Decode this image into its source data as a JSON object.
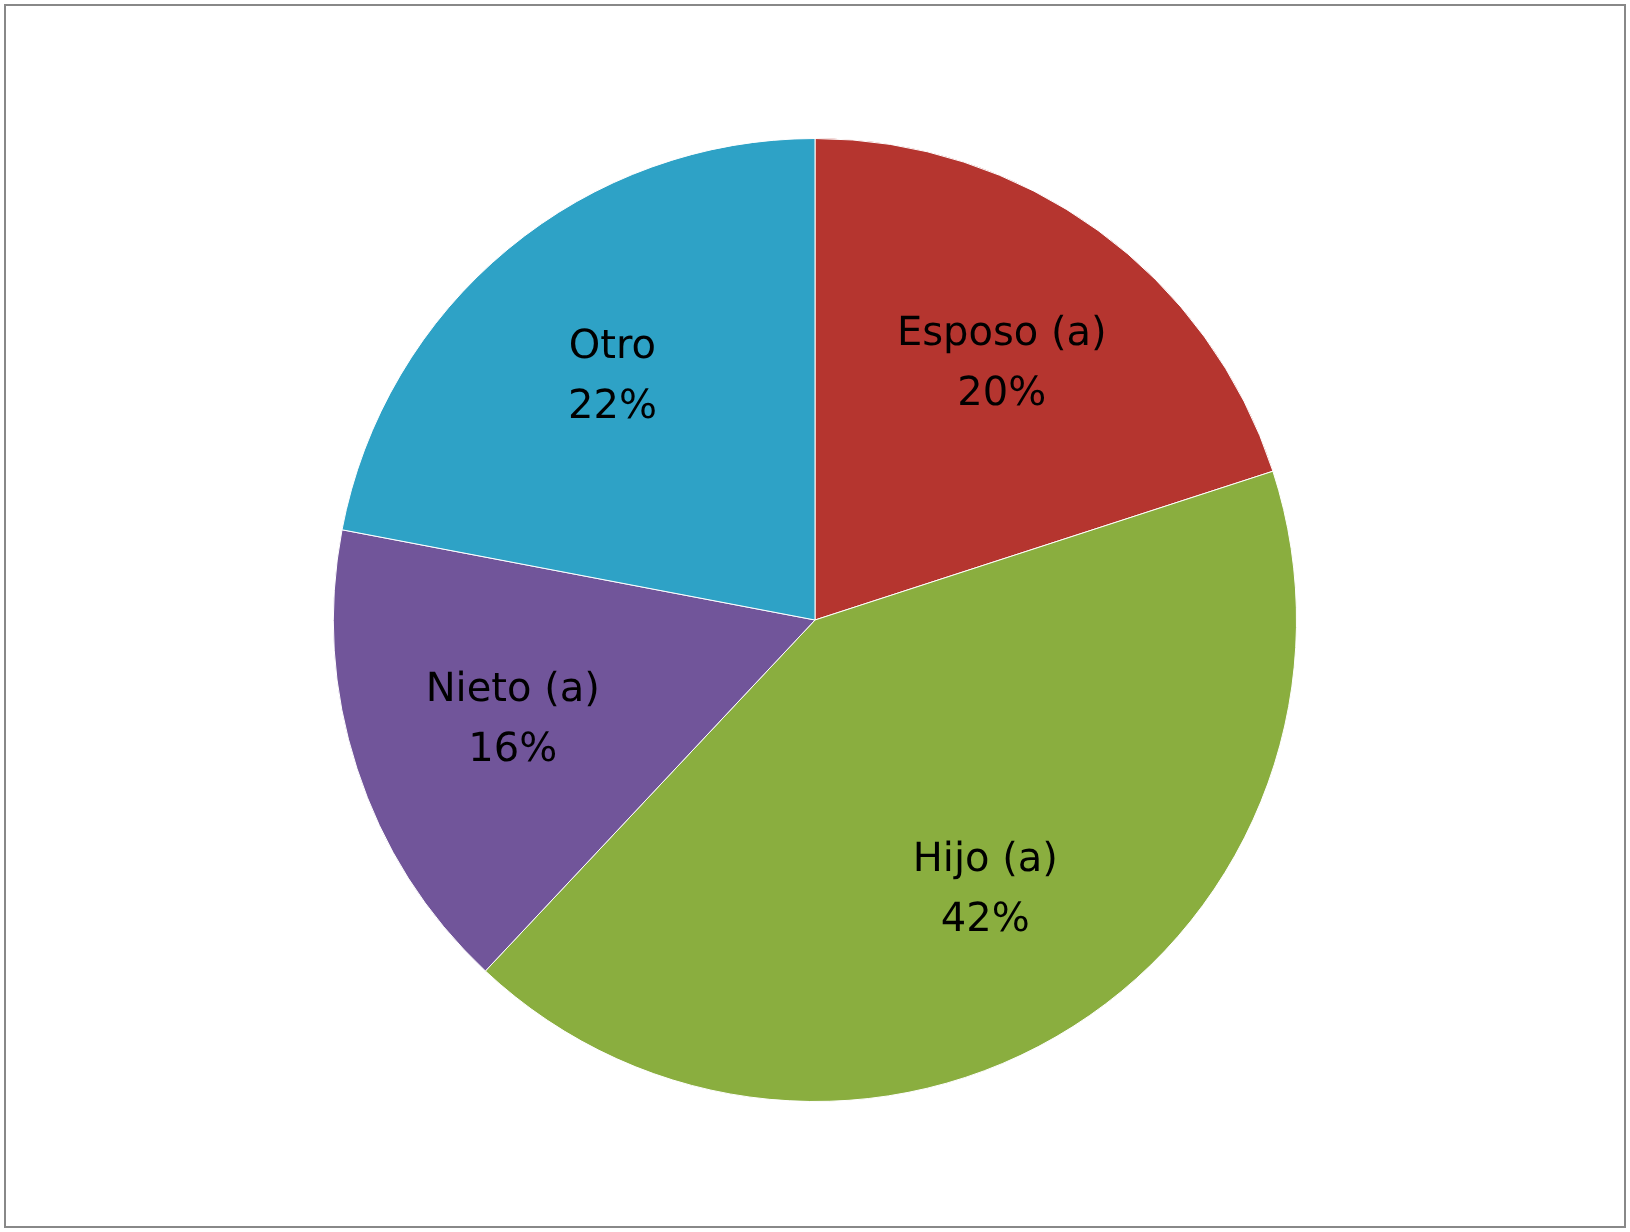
{
  "chart_data": {
    "type": "pie",
    "categories": [
      "Esposo (a)",
      "Hijo (a)",
      "Nieto (a)",
      "Otro"
    ],
    "values": [
      20,
      42,
      16,
      22
    ],
    "colors": [
      "#b5352f",
      "#8aae3f",
      "#71559a",
      "#2ea2c6"
    ],
    "value_labels": [
      "20%",
      "42%",
      "16%",
      "22%"
    ],
    "legend": false
  }
}
